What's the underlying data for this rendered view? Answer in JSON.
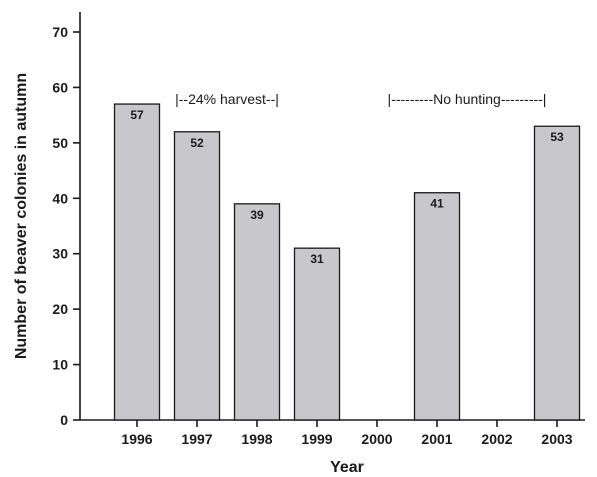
{
  "chart_data": {
    "type": "bar",
    "title": "",
    "xlabel": "Year",
    "ylabel": "Number of beaver colonies in autumn",
    "categories": [
      "1996",
      "1997",
      "1998",
      "1999",
      "2000",
      "2001",
      "2002",
      "2003"
    ],
    "values": [
      57,
      52,
      39,
      31,
      null,
      41,
      null,
      53
    ],
    "data_labels": [
      "57",
      "52",
      "39",
      "31",
      "",
      "41",
      "",
      "53"
    ],
    "ylim": [
      0,
      70
    ],
    "yticks": [
      0,
      10,
      20,
      30,
      40,
      50,
      60,
      70
    ],
    "grid": false,
    "legend": "none",
    "bar_color": "#c8c8cc",
    "bar_edge_color": "#1a1a1a",
    "annotations": [
      {
        "text": "|--24% harvest--|",
        "x_category": "1997.5",
        "y": 57
      },
      {
        "text": "|---------No hunting---------|",
        "x_category": "2001.5",
        "y": 57
      }
    ]
  }
}
